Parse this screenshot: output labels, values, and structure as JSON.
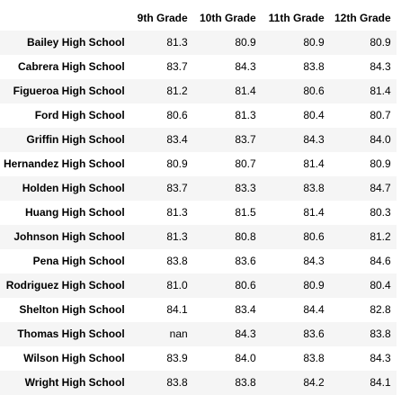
{
  "table": {
    "columns": [
      "",
      "9th Grade",
      "10th Grade",
      "11th Grade",
      "12th Grade"
    ],
    "rows": [
      {
        "school": "Bailey High School",
        "g9": "81.3",
        "g10": "80.9",
        "g11": "80.9",
        "g12": "80.9"
      },
      {
        "school": "Cabrera High School",
        "g9": "83.7",
        "g10": "84.3",
        "g11": "83.8",
        "g12": "84.3"
      },
      {
        "school": "Figueroa High School",
        "g9": "81.2",
        "g10": "81.4",
        "g11": "80.6",
        "g12": "81.4"
      },
      {
        "school": "Ford High School",
        "g9": "80.6",
        "g10": "81.3",
        "g11": "80.4",
        "g12": "80.7"
      },
      {
        "school": "Griffin High School",
        "g9": "83.4",
        "g10": "83.7",
        "g11": "84.3",
        "g12": "84.0"
      },
      {
        "school": "Hernandez High School",
        "g9": "80.9",
        "g10": "80.7",
        "g11": "81.4",
        "g12": "80.9"
      },
      {
        "school": "Holden High School",
        "g9": "83.7",
        "g10": "83.3",
        "g11": "83.8",
        "g12": "84.7"
      },
      {
        "school": "Huang High School",
        "g9": "81.3",
        "g10": "81.5",
        "g11": "81.4",
        "g12": "80.3"
      },
      {
        "school": "Johnson High School",
        "g9": "81.3",
        "g10": "80.8",
        "g11": "80.6",
        "g12": "81.2"
      },
      {
        "school": "Pena High School",
        "g9": "83.8",
        "g10": "83.6",
        "g11": "84.3",
        "g12": "84.6"
      },
      {
        "school": "Rodriguez High School",
        "g9": "81.0",
        "g10": "80.6",
        "g11": "80.9",
        "g12": "80.4"
      },
      {
        "school": "Shelton High School",
        "g9": "84.1",
        "g10": "83.4",
        "g11": "84.4",
        "g12": "82.8"
      },
      {
        "school": "Thomas High School",
        "g9": "nan",
        "g10": "84.3",
        "g11": "83.6",
        "g12": "83.8"
      },
      {
        "school": "Wilson High School",
        "g9": "83.9",
        "g10": "84.0",
        "g11": "83.8",
        "g12": "84.3"
      },
      {
        "school": "Wright High School",
        "g9": "83.8",
        "g10": "83.8",
        "g11": "84.2",
        "g12": "84.1"
      }
    ]
  }
}
